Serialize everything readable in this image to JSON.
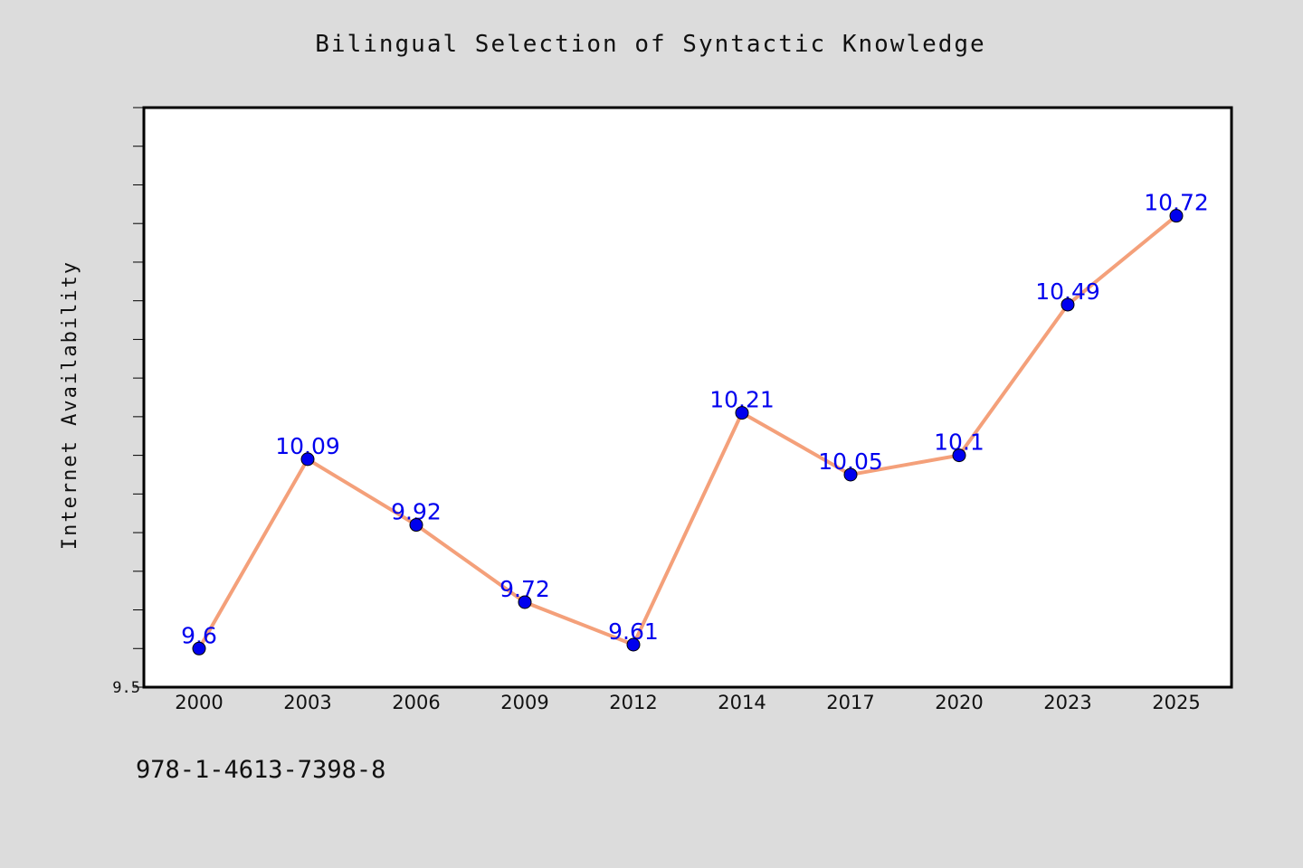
{
  "chart_data": {
    "type": "line",
    "title": "Bilingual Selection of Syntactic Knowledge",
    "xlabel": "",
    "ylabel": "Internet Availability",
    "categories": [
      "2000",
      "2003",
      "2006",
      "2009",
      "2012",
      "2014",
      "2017",
      "2020",
      "2023",
      "2025"
    ],
    "series": [
      {
        "values": [
          9.6,
          10.09,
          9.92,
          9.72,
          9.61,
          10.21,
          10.05,
          10.1,
          10.49,
          10.72
        ],
        "line_color": "#f4a07a",
        "marker_color": "#0000ee",
        "label_color": "#0000ee"
      }
    ],
    "data_labels": [
      "9.6",
      "10.09",
      "9.92",
      "9.72",
      "9.61",
      "10.21",
      "10.05",
      "10.1",
      "10.49",
      "10.72"
    ],
    "ylim": [
      9.5,
      11.0
    ],
    "ytick_labels": [
      "9.5"
    ],
    "grid": false,
    "legend": "none"
  },
  "footer": {
    "code": "978-1-4613-7398-8"
  },
  "colors": {
    "background": "#dcdcdc",
    "plot_background": "#ffffff",
    "axis": "#000000"
  }
}
